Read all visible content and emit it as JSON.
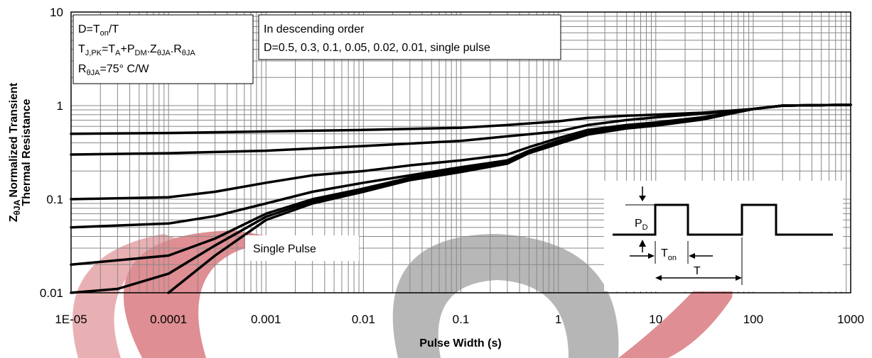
{
  "chart_data": {
    "type": "line",
    "x_scale": "log",
    "y_scale": "log",
    "xlim": [
      1e-05,
      1000
    ],
    "ylim": [
      0.01,
      10
    ],
    "grid": true,
    "xlabel": "Pulse Width (s)",
    "ylabel_line1": "Normalized Transient",
    "ylabel_line2": "Thermal Resistance",
    "ylabel_symbol": "Z",
    "ylabel_sub": "θJA",
    "x_ticks": [
      "1E-05",
      "0.0001",
      "0.001",
      "0.01",
      "0.1",
      "1",
      "10",
      "100",
      "1000"
    ],
    "y_ticks": [
      "0.01",
      "0.1",
      "1",
      "10"
    ],
    "notes_box": {
      "line1": "D=T",
      "line1_sub": "on",
      "line1_end": "/T",
      "line2_a": "T",
      "line2_a_sub": "J,PK",
      "line2_b": "=T",
      "line2_b_sub": "A",
      "line2_c": "+P",
      "line2_c_sub": "DM",
      "line2_d": ".Z",
      "line2_d_sub": "θJA",
      "line2_e": ".R",
      "line2_e_sub": "θJA",
      "line3_a": "R",
      "line3_a_sub": "θJA",
      "line3_b": "=75° C/W"
    },
    "order_box": {
      "line1": "In descending order",
      "line2": "D=0.5, 0.3, 0.1, 0.05, 0.02, 0.01, single pulse"
    },
    "single_pulse_label": "Single Pulse",
    "inset": {
      "pd_label": "P",
      "pd_sub": "D",
      "ton_label": "T",
      "ton_sub": "on",
      "t_label": "T"
    },
    "series": [
      {
        "x": [
          1e-05,
          0.0001,
          0.001,
          0.01,
          0.1,
          0.3,
          1,
          2,
          5,
          10,
          30,
          100,
          200,
          1000
        ],
        "y": [
          0.5,
          0.51,
          0.53,
          0.55,
          0.58,
          0.62,
          0.68,
          0.74,
          0.78,
          0.8,
          0.84,
          0.92,
          1.0,
          1.02
        ]
      },
      {
        "x": [
          1e-05,
          0.0001,
          0.001,
          0.01,
          0.1,
          0.3,
          1,
          2,
          5,
          10,
          30,
          100,
          200,
          1000
        ],
        "y": [
          0.3,
          0.31,
          0.33,
          0.37,
          0.42,
          0.47,
          0.53,
          0.62,
          0.7,
          0.75,
          0.82,
          0.92,
          1.0,
          1.02
        ]
      },
      {
        "x": [
          1e-05,
          0.0001,
          0.0003,
          0.001,
          0.003,
          0.01,
          0.03,
          0.1,
          0.3,
          0.5,
          1,
          2,
          5,
          10,
          30,
          100,
          200,
          1000
        ],
        "y": [
          0.1,
          0.105,
          0.12,
          0.15,
          0.18,
          0.2,
          0.23,
          0.26,
          0.3,
          0.36,
          0.45,
          0.55,
          0.62,
          0.66,
          0.75,
          0.92,
          1.0,
          1.02
        ]
      },
      {
        "x": [
          1e-05,
          0.0001,
          0.0003,
          0.001,
          0.003,
          0.01,
          0.03,
          0.1,
          0.3,
          0.5,
          1,
          2,
          5,
          10,
          30,
          100,
          200,
          1000
        ],
        "y": [
          0.05,
          0.055,
          0.066,
          0.09,
          0.12,
          0.15,
          0.18,
          0.22,
          0.26,
          0.33,
          0.42,
          0.52,
          0.6,
          0.64,
          0.74,
          0.92,
          1.0,
          1.02
        ]
      },
      {
        "x": [
          1e-05,
          0.0001,
          0.0003,
          0.001,
          0.003,
          0.01,
          0.03,
          0.1,
          0.3,
          0.5,
          1,
          2,
          5,
          10,
          30,
          100,
          200,
          1000
        ],
        "y": [
          0.02,
          0.025,
          0.038,
          0.07,
          0.1,
          0.13,
          0.17,
          0.21,
          0.25,
          0.32,
          0.41,
          0.51,
          0.59,
          0.63,
          0.73,
          0.92,
          1.0,
          1.02
        ]
      },
      {
        "x": [
          1e-05,
          3e-05,
          0.0001,
          0.0003,
          0.001,
          0.003,
          0.01,
          0.03,
          0.1,
          0.3,
          0.5,
          1,
          2,
          5,
          10,
          30,
          100,
          200,
          1000
        ],
        "y": [
          0.01,
          0.011,
          0.016,
          0.032,
          0.065,
          0.095,
          0.125,
          0.165,
          0.2,
          0.245,
          0.315,
          0.4,
          0.5,
          0.58,
          0.62,
          0.72,
          0.92,
          1.0,
          1.02
        ]
      },
      {
        "x": [
          0.0001,
          0.0003,
          0.001,
          0.003,
          0.01,
          0.03,
          0.1,
          0.3,
          0.5,
          1,
          2,
          5,
          10,
          30,
          100,
          200,
          1000
        ],
        "y": [
          0.01,
          0.025,
          0.06,
          0.09,
          0.12,
          0.16,
          0.195,
          0.24,
          0.31,
          0.39,
          0.49,
          0.57,
          0.61,
          0.71,
          0.92,
          1.0,
          1.02
        ]
      }
    ]
  }
}
